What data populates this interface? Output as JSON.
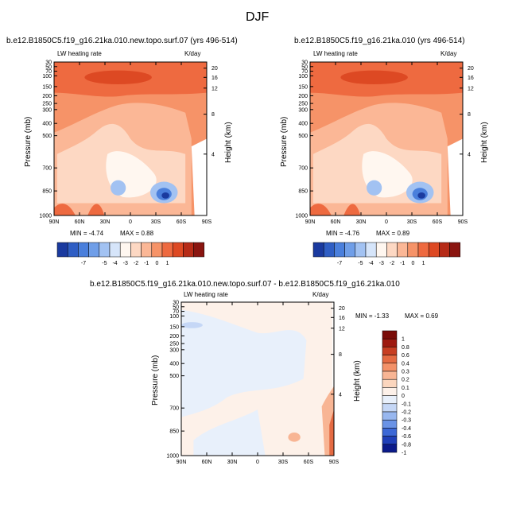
{
  "figure": {
    "title": "DJF",
    "panel_field_label": "LW heating rate",
    "units_label": "K/day",
    "y_axis_label": "Pressure (mb)",
    "y2_axis_label": "Height (km)"
  },
  "colors": {
    "full_scale": [
      "#1a3a9f",
      "#2f5ec4",
      "#4a7fdc",
      "#6f9ee8",
      "#a2c2f2",
      "#d6e5fa",
      "#fff7f0",
      "#fdd8c3",
      "#fbb796",
      "#f69368",
      "#ee6a40",
      "#dd4923",
      "#b62b17",
      "#8a1510"
    ],
    "diff_scale": [
      "#0b1a8a",
      "#1f3fb8",
      "#3c68d6",
      "#6a93e6",
      "#98b7ef",
      "#c5d7f6",
      "#e8f0fb",
      "#fdf1e9",
      "#fbd6be",
      "#f8b594",
      "#f39168",
      "#e46a42",
      "#c73e22",
      "#9e1a10",
      "#7a0c08"
    ]
  },
  "chart_data": [
    {
      "type": "heatmap",
      "panel": "left",
      "title": "b.e12.B1850C5.f19_g16.21ka.010.new.topo.surf.07 (yrs 496-514)",
      "field": "LW heating rate",
      "units": "K/day",
      "xlabel": "",
      "ylabel": "Pressure (mb)",
      "y2label": "Height (km)",
      "x_ticks": [
        "90N",
        "60N",
        "30N",
        "0",
        "30S",
        "60S",
        "90S"
      ],
      "y_ticks": [
        "30",
        "50",
        "70",
        "100",
        "150",
        "200",
        "250",
        "300",
        "400",
        "500",
        "700",
        "850",
        "1000"
      ],
      "y2_ticks": [
        "20",
        "16",
        "12",
        "8",
        "4"
      ],
      "min_label": "MIN = -4.74",
      "max_label": "MAX =  0.88",
      "colorbar_labels": [
        "-7",
        "-5",
        "-4",
        "-3",
        "-2",
        "-1",
        "0",
        "1"
      ]
    },
    {
      "type": "heatmap",
      "panel": "right",
      "title": "b.e12.B1850C5.f19_g16.21ka.010 (yrs 496-514)",
      "field": "LW heating rate",
      "units": "K/day",
      "xlabel": "",
      "ylabel": "Pressure (mb)",
      "y2label": "Height (km)",
      "x_ticks": [
        "90N",
        "60N",
        "30N",
        "0",
        "30S",
        "60S",
        "90S"
      ],
      "y_ticks": [
        "30",
        "50",
        "70",
        "100",
        "150",
        "200",
        "250",
        "300",
        "400",
        "500",
        "700",
        "850",
        "1000"
      ],
      "y2_ticks": [
        "20",
        "16",
        "12",
        "8",
        "4"
      ],
      "min_label": "MIN = -4.76",
      "max_label": "MAX =  0.89",
      "colorbar_labels": [
        "-7",
        "-5",
        "-4",
        "-3",
        "-2",
        "-1",
        "0",
        "1"
      ]
    },
    {
      "type": "heatmap",
      "panel": "difference",
      "title": "b.e12.B1850C5.f19_g16.21ka.010.new.topo.surf.07 - b.e12.B1850C5.f19_g16.21ka.010",
      "field": "LW heating rate",
      "units": "K/day",
      "xlabel": "",
      "ylabel": "Pressure (mb)",
      "y2label": "Height (km)",
      "x_ticks": [
        "90N",
        "60N",
        "30N",
        "0",
        "30S",
        "60S",
        "90S"
      ],
      "y_ticks": [
        "30",
        "50",
        "70",
        "100",
        "150",
        "200",
        "250",
        "300",
        "400",
        "500",
        "700",
        "850",
        "1000"
      ],
      "y2_ticks": [
        "20",
        "16",
        "12",
        "8",
        "4"
      ],
      "min_label": "MIN = -1.33",
      "max_label": "MAX =  0.69",
      "colorbar_labels": [
        "1",
        "0.8",
        "0.6",
        "0.4",
        "0.3",
        "0.2",
        "0.1",
        "0",
        "-0.1",
        "-0.2",
        "-0.3",
        "-0.4",
        "-0.6",
        "-0.8",
        "-1"
      ]
    }
  ]
}
